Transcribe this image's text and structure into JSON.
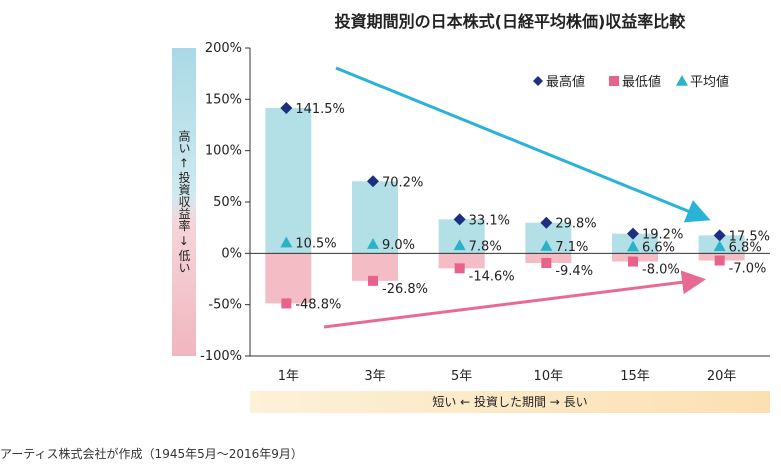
{
  "chart_data": {
    "type": "bar",
    "title": "投資期間別の日本株式(日経平均株価)収益率比較",
    "categories": [
      "1年",
      "3年",
      "5年",
      "10年",
      "15年",
      "20年"
    ],
    "series": [
      {
        "name": "最高値",
        "values": [
          141.5,
          70.2,
          33.1,
          29.8,
          19.2,
          17.5
        ],
        "labels": [
          "141.5%",
          "70.2%",
          "33.1%",
          "29.8%",
          "19.2%",
          "17.5%"
        ],
        "color": "#1f2f7f",
        "marker": "diamond"
      },
      {
        "name": "最低値",
        "values": [
          -48.8,
          -26.8,
          -14.6,
          -9.4,
          -8.0,
          -7.0
        ],
        "labels": [
          "-48.8%",
          "-26.8%",
          "-14.6%",
          "-9.4%",
          "-8.0%",
          "-7.0%"
        ],
        "color": "#e8628a",
        "marker": "square"
      },
      {
        "name": "平均値",
        "values": [
          10.5,
          9.0,
          7.8,
          7.1,
          6.6,
          6.8
        ],
        "labels": [
          "10.5%",
          "9.0%",
          "7.8%",
          "7.1%",
          "6.6%",
          "6.8%"
        ],
        "color": "#29b3c9",
        "marker": "triangle"
      }
    ],
    "ylim": [
      -100,
      200
    ],
    "yticks": [
      "200%",
      "150%",
      "100%",
      "50%",
      "0%",
      "-50%",
      "-100%"
    ],
    "yticks_values": [
      200,
      150,
      100,
      50,
      0,
      -50,
      -100
    ],
    "legend_position": "top-right",
    "colors": {
      "range_positive": "#b3dfe6",
      "range_negative": "#f4bcc4",
      "arrow_top": "#29b3d6",
      "arrow_bottom": "#e86a92"
    }
  },
  "left_axis_label": "高い ← 投資収益率 → 低い",
  "left_axis_label_parts": {
    "high": "高い",
    "middle": "投資収益率",
    "low": "低い",
    "arrow_up": "←",
    "arrow_down": "→"
  },
  "bottom_label": "短い ← 投資した期間 → 長い",
  "footnote": "アーティス株式会社が作成（1945年5月～2016年9月）"
}
